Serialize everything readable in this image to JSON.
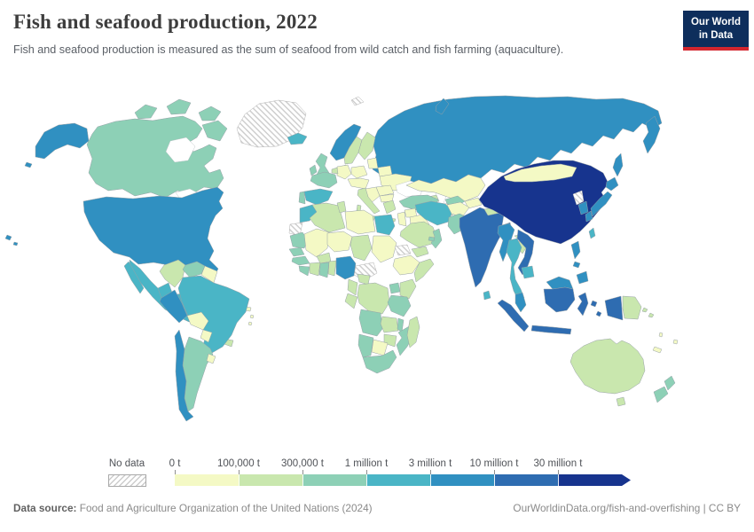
{
  "header": {
    "title": "Fish and seafood production, 2022",
    "subtitle": "Fish and seafood production is measured as the sum of seafood from wild catch and fish farming (aquaculture).",
    "logo": {
      "line1": "Our World",
      "line2": "in Data",
      "bg_color": "#0e2e5c",
      "accent_color": "#d4262e"
    }
  },
  "legend": {
    "no_data_label": "No data",
    "tick_labels": [
      "0 t",
      "100,000 t",
      "300,000 t",
      "1 million t",
      "3 million t",
      "10 million t",
      "30 million t"
    ],
    "bin_colors": [
      "#f4f9c5",
      "#c9e7ae",
      "#8dd0b6",
      "#4ab5c6",
      "#3090c1",
      "#2e6cb1",
      "#17348e"
    ],
    "nodata_hatch_color": "#cccccc"
  },
  "footer": {
    "datasource_label": "Data source:",
    "datasource_text": " Food and Agriculture Organization of the United Nations (2024)",
    "link_text": "OurWorldinData.org/fish-and-overfishing",
    "license_text": " | CC BY"
  },
  "chart_data": {
    "type": "choropleth-map",
    "title": "Fish and seafood production, 2022",
    "unit": "tonnes",
    "bins": [
      "0 t",
      "100,000 t",
      "300,000 t",
      "1 million t",
      "3 million t",
      "10 million t",
      "30 million t"
    ],
    "legend_position": "bottom",
    "notes": "bin index 0 = 0-100k t, 1 = 100k-300k, 2 = 300k-1M, 3 = 1M-3M, 4 = 3M-10M, 5 = 10M-30M, 6 = 30M+, n = no data"
  },
  "map": {
    "countries": {
      "greenland": "n",
      "svalbard": "n",
      "canada": 2,
      "canada-arctic1": 2,
      "canada-arctic2": 2,
      "canada-arctic3": 2,
      "canada-baffin": 2,
      "alaska": 4,
      "aleutians": 4,
      "hawaii1": 4,
      "hawaii2": 4,
      "usa": 4,
      "mexico": 3,
      "baja": 3,
      "guatemala": 0,
      "honduras": 0,
      "nicaragua": 0,
      "costarica": 0,
      "panama": 1,
      "cuba": 0,
      "hispaniola": 0,
      "puertorico": 0,
      "antilles1": 0,
      "antilles2": 0,
      "colombia": 1,
      "venezuela": 2,
      "guyanas": 0,
      "ecuador": 3,
      "peru": 4,
      "brazil": 3,
      "bolivia": 0,
      "paraguay": 0,
      "argentina": 2,
      "chile": 4,
      "uruguay": 0,
      "iceland": 3,
      "norway": 4,
      "sweden": 1,
      "finland": 1,
      "denmark": 2,
      "uk": 2,
      "ireland": 2,
      "france": 2,
      "spain": 3,
      "portugal": 2,
      "germany": 0,
      "lowcountries": 1,
      "poland": 0,
      "baltics": 0,
      "belarus": 0,
      "ukraine": 0,
      "centraleu": 0,
      "romania": 0,
      "bulgaria": 0,
      "balkans": 0,
      "italy": 1,
      "sicily": 1,
      "sardinia": 1,
      "greece": 1,
      "crete": 1,
      "russia": 4,
      "kamchatka": 4,
      "sakhalin": 4,
      "novayazemlya": 4,
      "caucasus": 1,
      "turkey": 2,
      "syria": 0,
      "iraq": 0,
      "jordan-israel": 0,
      "saudi": 1,
      "yemen": 1,
      "oman": 2,
      "uae": 2,
      "iran": 3,
      "kazakhstan": 0,
      "uzbekistan": 2,
      "turkmenistan": 0,
      "kyrgyz-tajik": 0,
      "afghanistan": 0,
      "pakistan": 2,
      "india": 5,
      "srilanka": 3,
      "nepal": 1,
      "bangladesh": 5,
      "myanmar": 4,
      "thailand": 3,
      "laos": 1,
      "cambodia": 3,
      "vietnam": 5,
      "malaysia-peninsula": 4,
      "sumatra": 5,
      "java": 5,
      "borneo-malaysia": 4,
      "borneo-indonesia": 5,
      "sulawesi": 5,
      "moluccas1": 5,
      "moluccas2": 5,
      "luzon": 4,
      "visayas": 4,
      "mindanao": 4,
      "wpapua": 5,
      "png": 1,
      "china": 6,
      "mongolia": 0,
      "taiwan": 3,
      "nkorea": "n",
      "skorea": 4,
      "japan-hokkaido": 4,
      "japan-honshu": 4,
      "japan-kyushu": 4,
      "australia": 1,
      "tasmania": 1,
      "nz-north": 2,
      "nz-south": 2,
      "newcaledonia": 0,
      "vanuatu": 0,
      "fiji": 0,
      "solomon1": 1,
      "solomon2": 1,
      "morocco": 3,
      "wsahara": "n",
      "algeria": 1,
      "tunisia": 1,
      "libya": 0,
      "egypt": 3,
      "mauritania": 2,
      "mali": 0,
      "niger": 0,
      "chad": 1,
      "sudan": 0,
      "eritrea": "n",
      "ethiopia": 0,
      "somalia": 1,
      "ssudan": "n",
      "senegal": 2,
      "guinea": 2,
      "sierraleone-liberia": 2,
      "cotedivoire": 1,
      "burkina": 1,
      "ghana": 2,
      "togo-benin": 1,
      "nigeria": 4,
      "cameroon": 1,
      "car": 1,
      "gabon-congo": 1,
      "drc": 1,
      "uganda": 2,
      "kenya": 1,
      "tanzania": 2,
      "angola": 2,
      "zambia": 1,
      "malawi": 2,
      "mozambique": 2,
      "zimbabwe": 1,
      "botswana": 0,
      "namibia": 2,
      "southafrica": 2,
      "madagascar": 1
    }
  }
}
